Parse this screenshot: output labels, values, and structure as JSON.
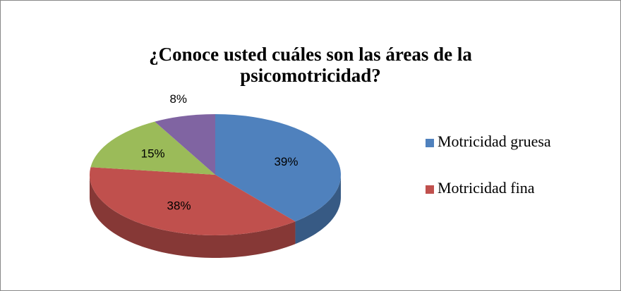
{
  "chart_data": {
    "type": "pie",
    "title": "¿Conoce usted cuáles son las áreas de la psicomotricidad?",
    "categories": [
      "Motricidad gruesa",
      "Motricidad fina",
      null,
      null
    ],
    "values": [
      39,
      38,
      15,
      8
    ],
    "value_labels": [
      "39%",
      "38%",
      "15%",
      "8%"
    ],
    "colors": [
      "#4f81bd",
      "#c0504d",
      "#9bbb59",
      "#8064a2"
    ],
    "legend": "right"
  }
}
